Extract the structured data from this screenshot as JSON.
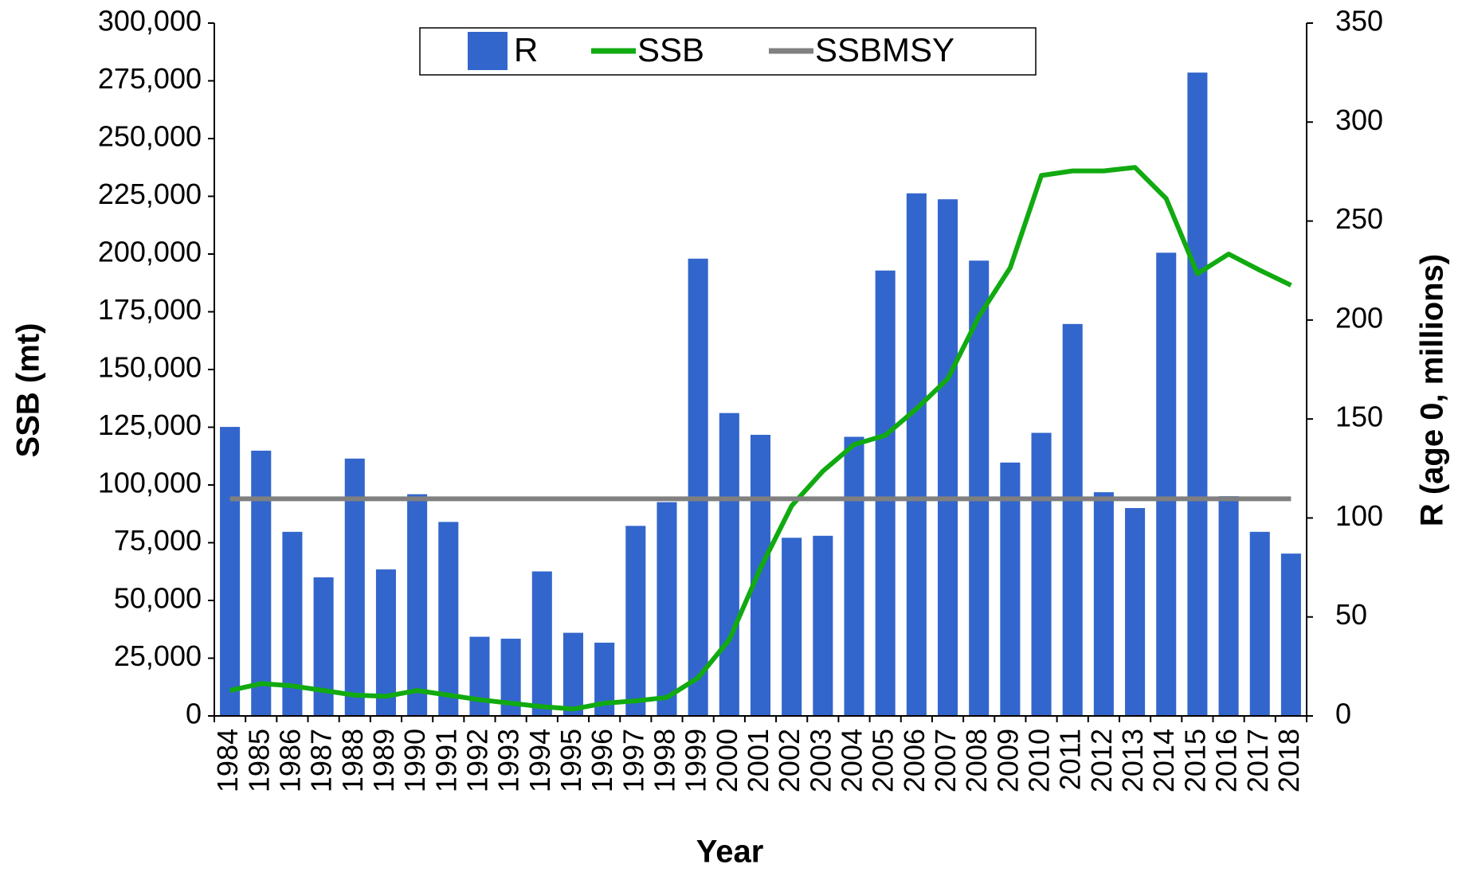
{
  "chart_data": {
    "type": "bar-line",
    "categories": [
      "1984",
      "1985",
      "1986",
      "1987",
      "1988",
      "1989",
      "1990",
      "1991",
      "1992",
      "1993",
      "1994",
      "1995",
      "1996",
      "1997",
      "1998",
      "1999",
      "2000",
      "2001",
      "2002",
      "2003",
      "2004",
      "2005",
      "2006",
      "2007",
      "2008",
      "2009",
      "2010",
      "2011",
      "2012",
      "2013",
      "2014",
      "2015",
      "2016",
      "2017",
      "2018"
    ],
    "series": [
      {
        "name": "R",
        "type": "bar",
        "axis": "y2",
        "color": "#3366cc",
        "values": [
          146,
          134,
          93,
          70,
          130,
          74,
          112,
          98,
          40,
          39,
          73,
          42,
          37,
          96,
          108,
          231,
          153,
          142,
          90,
          91,
          141,
          225,
          264,
          261,
          230,
          128,
          143,
          198,
          113,
          105,
          234,
          325,
          111,
          93,
          82
        ]
      },
      {
        "name": "SSB",
        "type": "line",
        "color": "#11aa11",
        "values": [
          11000,
          14000,
          13000,
          11000,
          9000,
          8500,
          11000,
          9000,
          7000,
          5500,
          4000,
          3000,
          5500,
          6500,
          8000,
          16500,
          33000,
          64000,
          91000,
          106000,
          117500,
          121500,
          133000,
          146000,
          173000,
          194000,
          234000,
          236000,
          236000,
          237500,
          224000,
          191500,
          200000,
          193000,
          186500
        ]
      },
      {
        "name": "SSBMSY",
        "type": "line",
        "color": "#808080",
        "values": [
          94000,
          94000,
          94000,
          94000,
          94000,
          94000,
          94000,
          94000,
          94000,
          94000,
          94000,
          94000,
          94000,
          94000,
          94000,
          94000,
          94000,
          94000,
          94000,
          94000,
          94000,
          94000,
          94000,
          94000,
          94000,
          94000,
          94000,
          94000,
          94000,
          94000,
          94000,
          94000,
          94000,
          94000,
          94000
        ]
      }
    ],
    "x_label": "Year",
    "y_label": "SSB (mt)",
    "y2_label": "R (age 0, millions)",
    "ylim": [
      0,
      300000
    ],
    "yticks": [
      0,
      {
        "value": 25000,
        "label": "25,000"
      },
      {
        "value": 50000,
        "label": "50,000"
      },
      {
        "value": 75000,
        "label": "75,000"
      },
      {
        "value": 100000,
        "label": "100,000"
      },
      {
        "value": 125000,
        "label": "125,000"
      },
      {
        "value": 150000,
        "label": "150,000"
      },
      {
        "value": 175000,
        "label": "175,000"
      },
      {
        "value": 200000,
        "label": "200,000"
      },
      {
        "value": 225000,
        "label": "225,000"
      },
      {
        "value": 250000,
        "label": "250,000"
      },
      {
        "value": 275000,
        "label": "275,000"
      },
      {
        "value": 300000,
        "label": "300,000"
      }
    ],
    "y2lim": [
      0,
      350
    ],
    "y2ticks": [
      0,
      50,
      100,
      150,
      200,
      250,
      300,
      350
    ],
    "legend": "top"
  }
}
